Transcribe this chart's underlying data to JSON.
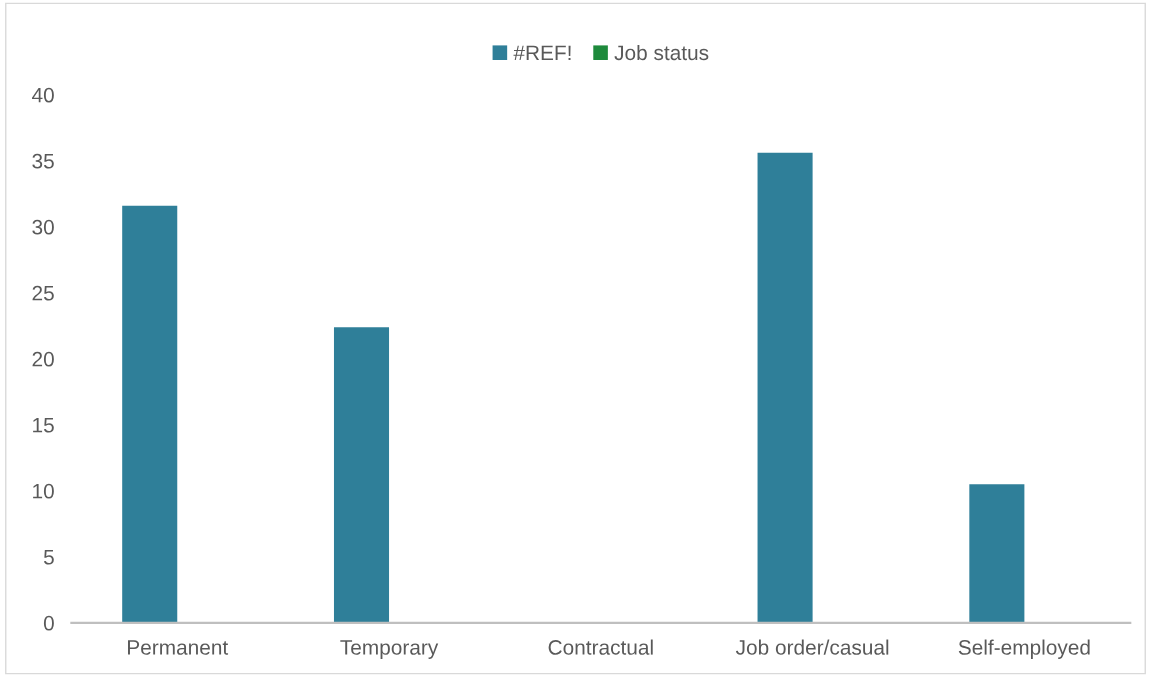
{
  "chart_data": {
    "type": "bar",
    "categories": [
      "Permanent",
      "Temporary",
      "Contractual",
      "Job order/casual",
      "Self-employed"
    ],
    "series": [
      {
        "name": "#REF!",
        "color": "#2f7f99",
        "values": [
          31.6,
          22.4,
          0,
          35.6,
          10.5
        ]
      },
      {
        "name": "Job status",
        "color": "#1e8a3c",
        "values": [
          null,
          null,
          null,
          null,
          null
        ]
      }
    ],
    "ylim": [
      0,
      40
    ],
    "yticks": [
      0,
      5,
      10,
      15,
      20,
      25,
      30,
      35,
      40
    ],
    "grid": false,
    "legend": "top"
  }
}
